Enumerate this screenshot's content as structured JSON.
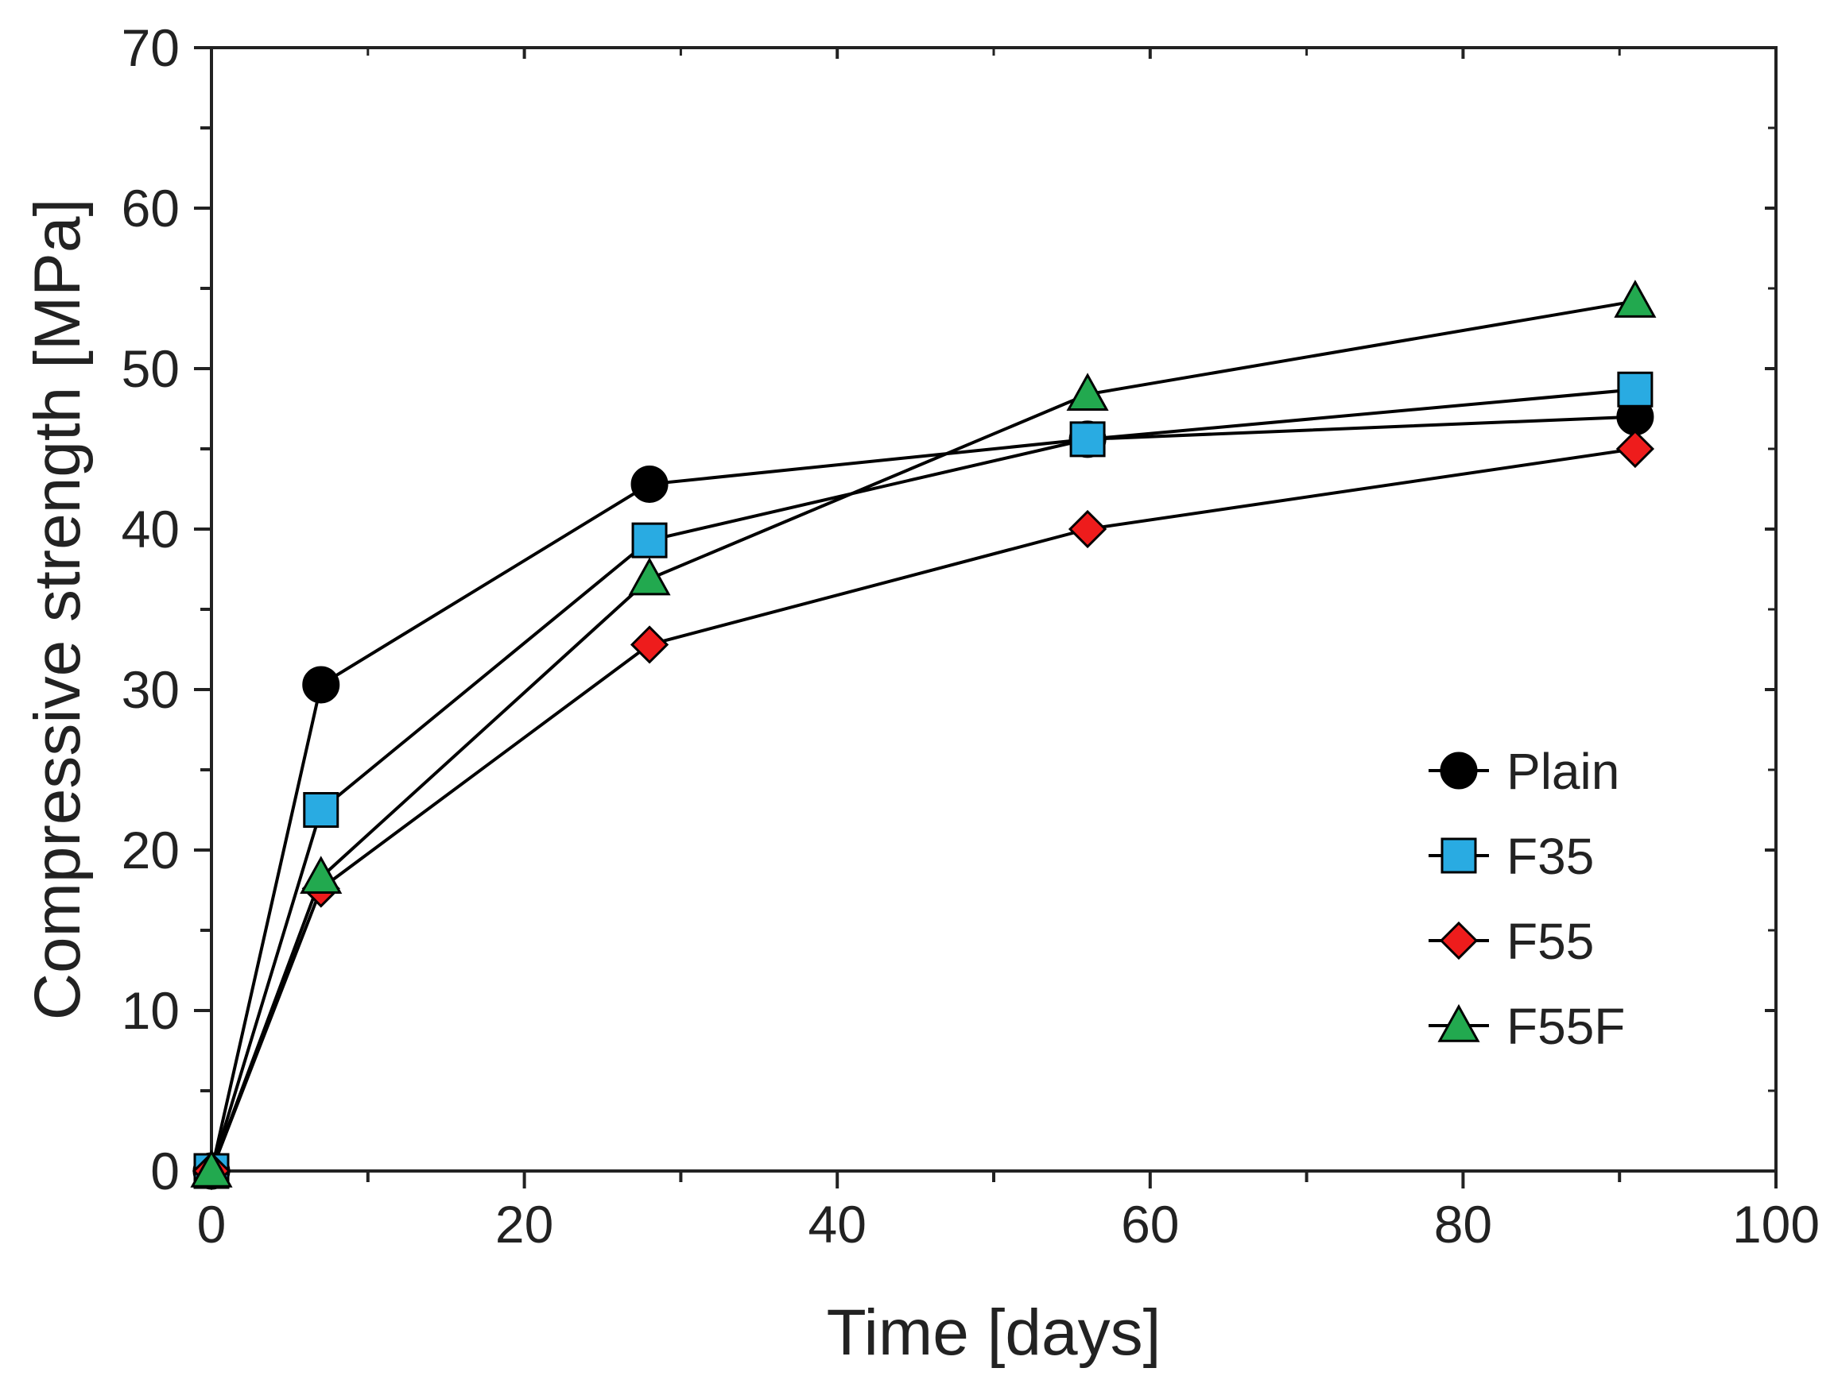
{
  "chart_data": {
    "type": "line",
    "title": "",
    "xlabel": "Time [days]",
    "ylabel": "Compressive strength [MPa]",
    "xlim": [
      0,
      100
    ],
    "ylim": [
      0,
      70
    ],
    "x_ticks": [
      0,
      20,
      40,
      60,
      80,
      100
    ],
    "y_ticks": [
      0,
      10,
      20,
      30,
      40,
      50,
      60,
      70
    ],
    "grid": false,
    "legend_position": "center-right",
    "x": [
      0,
      7,
      28,
      56,
      91
    ],
    "series": [
      {
        "name": "Plain",
        "marker": "circle",
        "color": "#000000",
        "values": [
          0,
          30.3,
          42.8,
          45.6,
          47.0
        ]
      },
      {
        "name": "F35",
        "marker": "square",
        "color": "#29abe2",
        "values": [
          0,
          22.5,
          39.3,
          45.6,
          48.7
        ]
      },
      {
        "name": "F55",
        "marker": "diamond",
        "color": "#ee1c1c",
        "values": [
          0,
          17.6,
          32.8,
          40.0,
          45.0
        ]
      },
      {
        "name": "F55F",
        "marker": "triangle",
        "color": "#22a94f",
        "values": [
          0,
          18.3,
          36.9,
          48.4,
          54.2
        ]
      }
    ]
  }
}
